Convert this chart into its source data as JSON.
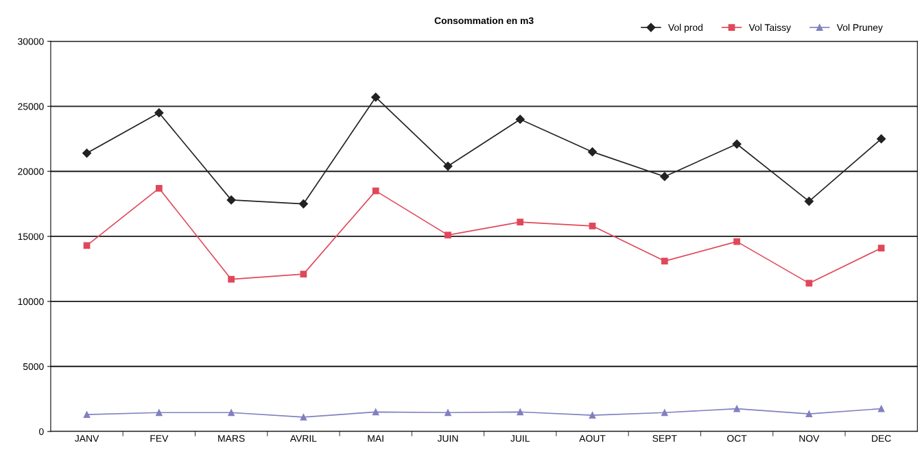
{
  "chart_data": {
    "type": "line",
    "title": "Consommation en m3",
    "categories": [
      "JANV",
      "FEV",
      "MARS",
      "AVRIL",
      "MAI",
      "JUIN",
      "JUIL",
      "AOUT",
      "SEPT",
      "OCT",
      "NOV",
      "DEC"
    ],
    "series": [
      {
        "name": "Vol prod",
        "color": "#222222",
        "marker": "diamond",
        "values": [
          21400,
          24500,
          17800,
          17500,
          25700,
          20400,
          24000,
          21500,
          19600,
          22100,
          17700,
          22500
        ]
      },
      {
        "name": "Vol Taissy",
        "color": "#e0485a",
        "marker": "square",
        "values": [
          14300,
          18700,
          11700,
          12100,
          18500,
          15100,
          16100,
          15800,
          13100,
          14600,
          11400,
          14100
        ]
      },
      {
        "name": "Vol Pruney",
        "color": "#8080c0",
        "marker": "triangle",
        "values": [
          1300,
          1450,
          1450,
          1100,
          1500,
          1450,
          1500,
          1250,
          1450,
          1750,
          1350,
          1750
        ]
      }
    ],
    "ylim": [
      0,
      30000
    ],
    "yticks": [
      0,
      5000,
      10000,
      15000,
      20000,
      25000,
      30000
    ],
    "grid": "y",
    "legend": "top right",
    "line_style": "solid"
  }
}
